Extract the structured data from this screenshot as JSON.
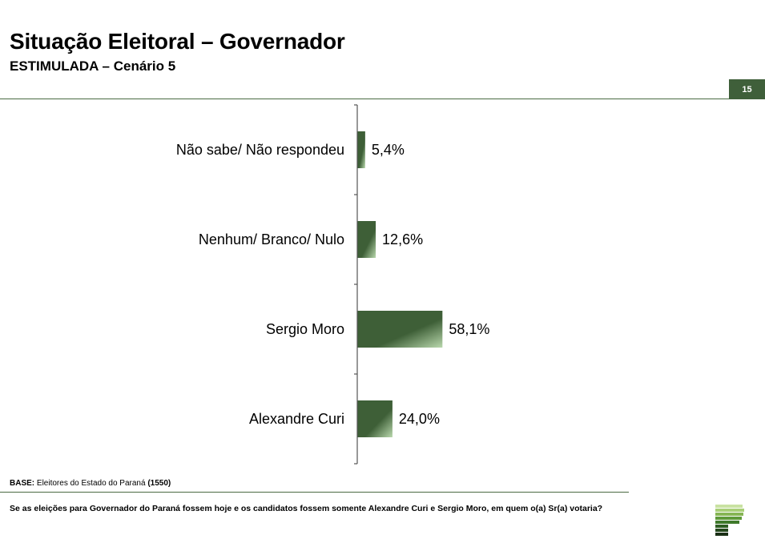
{
  "header": {
    "title": "Situação Eleitoral – Governador",
    "subtitle": "ESTIMULADA – Cenário 5",
    "page_number": "15"
  },
  "chart_data": {
    "type": "bar",
    "orientation": "horizontal",
    "categories": [
      "Não sabe/ Não respondeu",
      "Nenhum/ Branco/ Nulo",
      "Sergio Moro",
      "Alexandre Curi"
    ],
    "values": [
      5.4,
      12.6,
      58.1,
      24.0
    ],
    "value_labels": [
      "5,4%",
      "12,6%",
      "58,1%",
      "24,0%"
    ],
    "unit": "%",
    "xlim": [
      0,
      100
    ],
    "grid": false,
    "legend": "none"
  },
  "footer": {
    "base_label": "BASE:",
    "base_text": "Eleitores do Estado do Paraná",
    "base_count": "(1550)",
    "question": "Se as eleições para Governador do Paraná fossem hoje e os candidatos fossem somente Alexandre Curi e Sergio Moro, em quem o(a) Sr(a) votaria?"
  },
  "colors": {
    "bar_dark": "#3e5f37",
    "bar_light": "#b9d8ad",
    "accent": "#3f5f3a",
    "rule": "#4a6b42"
  }
}
